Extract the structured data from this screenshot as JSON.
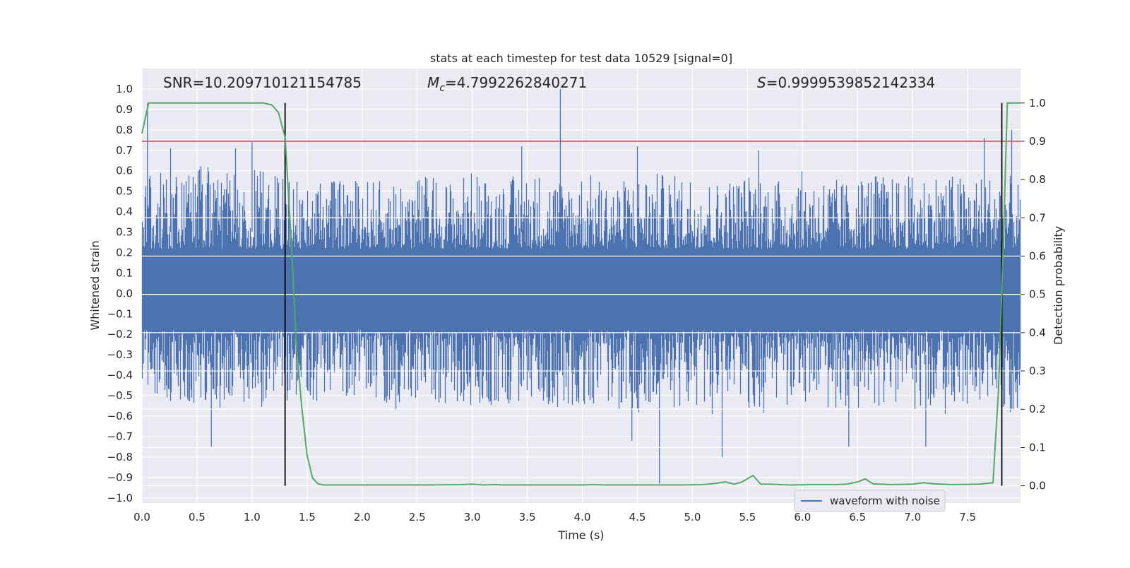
{
  "chart_data": {
    "type": "line",
    "title": "stats at each timestep for test data 10529 [signal=0]",
    "xlabel": "Time (s)",
    "ylabel": "Whitened strain",
    "y2label": "Detection probability",
    "xlim": [
      0.0,
      7.98
    ],
    "ylim": [
      -1.025,
      1.1
    ],
    "y2lim": [
      -0.045,
      1.09
    ],
    "grid": true,
    "x_ticks": [
      "0.0",
      "0.5",
      "1.0",
      "1.5",
      "2.0",
      "2.5",
      "3.0",
      "3.5",
      "4.0",
      "4.5",
      "5.0",
      "5.5",
      "6.0",
      "6.5",
      "7.0",
      "7.5"
    ],
    "y_ticks": [
      "1.0",
      "0.9",
      "0.8",
      "0.7",
      "0.6",
      "0.5",
      "0.4",
      "0.3",
      "0.2",
      "0.1",
      "0.0",
      "-0.1",
      "-0.2",
      "-0.3",
      "-0.4",
      "-0.5",
      "-0.6",
      "-0.7",
      "-0.8",
      "-0.9",
      "-1.0"
    ],
    "y2_ticks": [
      "1.0",
      "0.9",
      "0.8",
      "0.7",
      "0.6",
      "0.5",
      "0.4",
      "0.3",
      "0.2",
      "0.1",
      "0.0"
    ],
    "legend": {
      "entries": [
        "waveform with noise"
      ],
      "position": "lower right"
    },
    "annotations": {
      "snr_text": "SNR=10.209710121154785",
      "mc_symbol": "M",
      "mc_subscript": "c",
      "mc_value": "=4.7992262840271",
      "s_symbol": "S",
      "s_value": "=0.9999539852142334"
    },
    "threshold_line": {
      "axis": "probability",
      "value": 0.9
    },
    "vertical_markers": [
      1.3,
      7.81
    ],
    "waveform_envelope": {
      "x": [
        0.0,
        0.2,
        0.4,
        0.6,
        0.8,
        1.0,
        1.2,
        1.4,
        1.6,
        1.8,
        2.0,
        2.2,
        2.4,
        2.6,
        2.8,
        3.0,
        3.2,
        3.4,
        3.6,
        3.8,
        4.0,
        4.2,
        4.4,
        4.6,
        4.8,
        5.0,
        5.2,
        5.4,
        5.6,
        5.8,
        6.0,
        6.2,
        6.4,
        6.6,
        6.8,
        7.0,
        7.2,
        7.4,
        7.6,
        7.8,
        7.98
      ],
      "upper": [
        0.65,
        0.58,
        0.63,
        0.62,
        0.6,
        0.62,
        0.58,
        0.55,
        0.58,
        0.55,
        0.57,
        0.55,
        0.58,
        0.58,
        0.56,
        0.6,
        0.56,
        0.58,
        0.6,
        0.57,
        0.6,
        0.56,
        0.56,
        0.6,
        0.58,
        0.6,
        0.55,
        0.58,
        0.6,
        0.56,
        0.6,
        0.58,
        0.55,
        0.6,
        0.57,
        0.58,
        0.6,
        0.58,
        0.58,
        0.6,
        0.55
      ],
      "lower": [
        -0.45,
        -0.52,
        -0.55,
        -0.58,
        -0.55,
        -0.52,
        -0.6,
        -0.5,
        -0.55,
        -0.52,
        -0.55,
        -0.55,
        -0.6,
        -0.58,
        -0.55,
        -0.58,
        -0.56,
        -0.55,
        -0.54,
        -0.56,
        -0.55,
        -0.55,
        -0.58,
        -0.62,
        -0.56,
        -0.58,
        -0.6,
        -0.55,
        -0.6,
        -0.56,
        -0.55,
        -0.58,
        -0.58,
        -0.56,
        -0.55,
        -0.58,
        -0.58,
        -0.6,
        -0.55,
        -0.58,
        -0.6
      ]
    },
    "waveform_spikes": [
      {
        "x": 0.05,
        "y": 0.93
      },
      {
        "x": 0.26,
        "y": 0.71
      },
      {
        "x": 0.85,
        "y": 0.71
      },
      {
        "x": 1.0,
        "y": 0.74
      },
      {
        "x": 3.8,
        "y": 1.0
      },
      {
        "x": 3.45,
        "y": 0.72
      },
      {
        "x": 4.5,
        "y": 0.72
      },
      {
        "x": 5.6,
        "y": 0.7
      },
      {
        "x": 7.65,
        "y": 0.76
      },
      {
        "x": 7.9,
        "y": 0.8
      },
      {
        "x": 0.63,
        "y": -0.75
      },
      {
        "x": 4.45,
        "y": -0.72
      },
      {
        "x": 4.7,
        "y": -0.93
      },
      {
        "x": 5.27,
        "y": -0.8
      },
      {
        "x": 6.42,
        "y": -0.75
      },
      {
        "x": 7.12,
        "y": -0.75
      }
    ],
    "series": [
      {
        "name": "waveform with noise",
        "axis": "strain"
      },
      {
        "axis": "probability",
        "x": [
          0.0,
          0.06,
          0.2,
          0.4,
          0.6,
          0.8,
          1.0,
          1.1,
          1.18,
          1.24,
          1.3,
          1.36,
          1.4,
          1.45,
          1.5,
          1.55,
          1.6,
          1.65,
          1.7,
          1.8,
          1.95,
          2.2,
          2.6,
          2.9,
          3.0,
          3.1,
          3.2,
          3.3,
          3.5,
          4.0,
          4.1,
          4.2,
          4.4,
          4.6,
          4.7,
          4.9,
          5.1,
          5.2,
          5.3,
          5.38,
          5.45,
          5.55,
          5.62,
          5.7,
          5.8,
          5.9,
          6.1,
          6.3,
          6.4,
          6.5,
          6.57,
          6.64,
          6.8,
          7.0,
          7.1,
          7.2,
          7.35,
          7.6,
          7.73,
          7.78,
          7.82,
          7.86,
          7.9,
          7.98
        ],
        "y": [
          0.92,
          1.0,
          1.0,
          1.0,
          1.0,
          1.0,
          1.0,
          1.0,
          0.995,
          0.975,
          0.91,
          0.62,
          0.38,
          0.21,
          0.08,
          0.02,
          0.005,
          0.002,
          0.002,
          0.002,
          0.002,
          0.002,
          0.002,
          0.003,
          0.004,
          0.002,
          0.003,
          0.002,
          0.002,
          0.002,
          0.003,
          0.002,
          0.002,
          0.002,
          0.002,
          0.002,
          0.003,
          0.006,
          0.01,
          0.004,
          0.01,
          0.027,
          0.004,
          0.004,
          0.003,
          0.002,
          0.003,
          0.003,
          0.004,
          0.01,
          0.018,
          0.005,
          0.003,
          0.004,
          0.008,
          0.005,
          0.003,
          0.004,
          0.008,
          0.25,
          0.6,
          1.0,
          1.0,
          1.0
        ]
      }
    ]
  }
}
